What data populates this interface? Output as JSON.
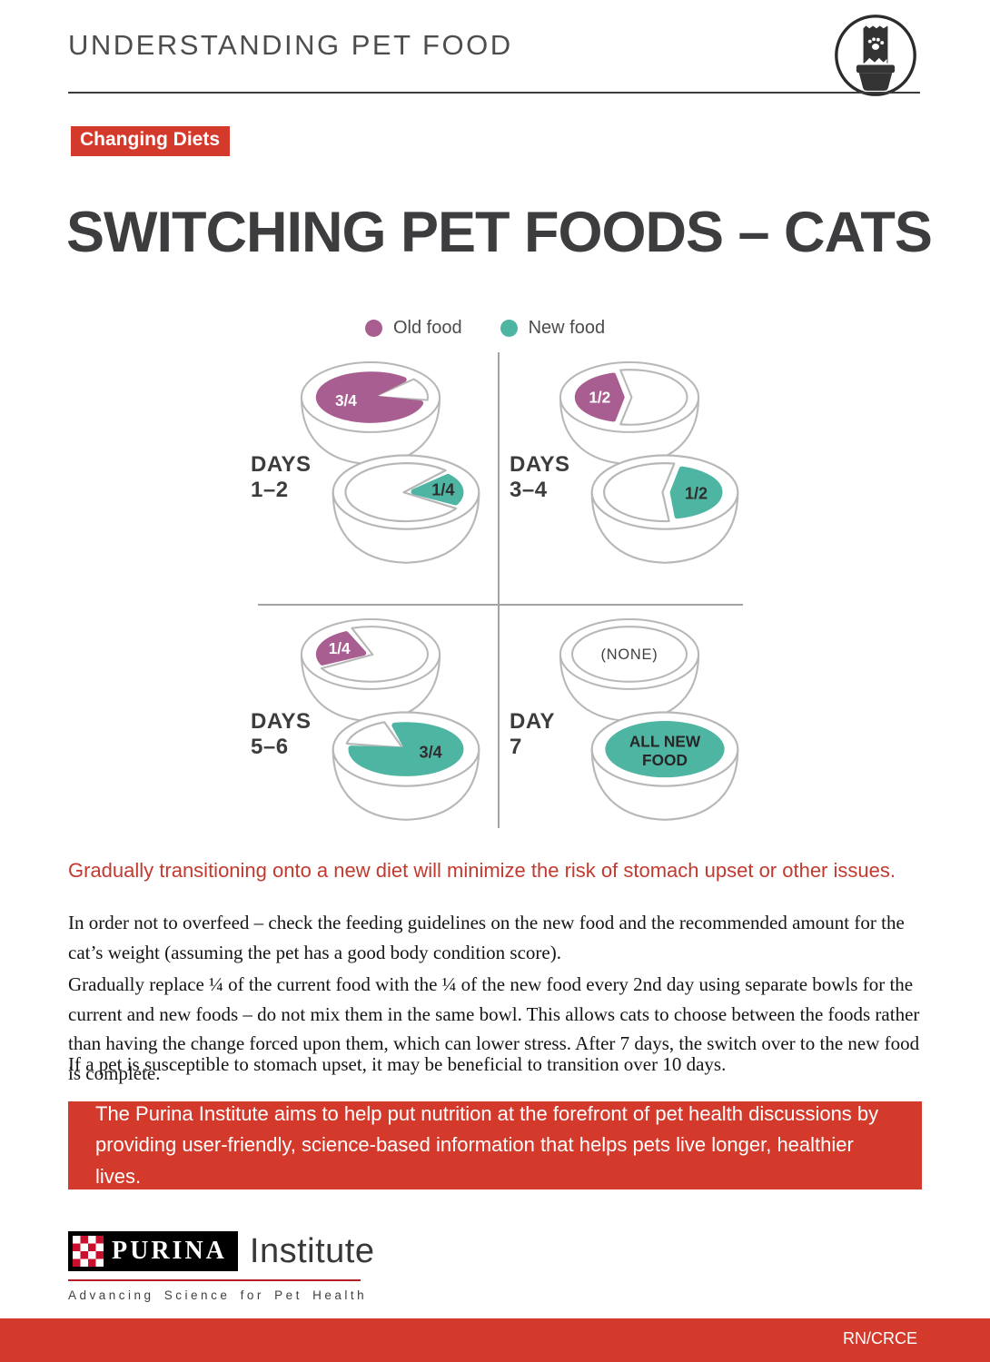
{
  "header": {
    "title": "UNDERSTANDING PET FOOD",
    "icon": "pet-food-bag-and-bowl"
  },
  "badge": {
    "label": "Changing Diets"
  },
  "title": "SWITCHING PET FOODS – CATS",
  "colors": {
    "red": "#d43a2c",
    "red_text": "#c13a2f",
    "old_food": "#a85e90",
    "new_food": "#4fb5a3"
  },
  "legend": {
    "items": [
      {
        "key": "old_food",
        "label": "Old food"
      },
      {
        "key": "new_food",
        "label": "New food"
      }
    ]
  },
  "diagram": {
    "quadrants": [
      {
        "label_line1": "DAYS",
        "label_line2": "1–2",
        "bowls": [
          {
            "shape": "three-quarter-left",
            "food": "old_food",
            "portion": "3/4",
            "portion_color": "#ffffff"
          },
          {
            "shape": "quarter-right",
            "food": "new_food",
            "portion": "1/4",
            "portion_color": "#2e2e2e"
          }
        ]
      },
      {
        "label_line1": "DAYS",
        "label_line2": "3–4",
        "bowls": [
          {
            "shape": "half-left",
            "food": "old_food",
            "portion": "1/2",
            "portion_color": "#ffffff"
          },
          {
            "shape": "half-right",
            "food": "new_food",
            "portion": "1/2",
            "portion_color": "#2e2e2e"
          }
        ]
      },
      {
        "label_line1": "DAYS",
        "label_line2": "5–6",
        "bowls": [
          {
            "shape": "quarter-left",
            "food": "old_food",
            "portion": "1/4",
            "portion_color": "#ffffff"
          },
          {
            "shape": "three-quarter-right",
            "food": "new_food",
            "portion": "3/4",
            "portion_color": "#2e2e2e"
          }
        ]
      },
      {
        "label_line1": "DAY",
        "label_line2": "7",
        "bowls": [
          {
            "shape": "none",
            "text": "(NONE)"
          },
          {
            "shape": "full",
            "food": "new_food",
            "text": "ALL NEW\nFOOD",
            "portion_color": "#262626"
          }
        ]
      }
    ]
  },
  "highlight": "Gradually transitioning onto a new diet will minimize the risk of stomach upset or other issues.",
  "paragraphs": [
    "In order not to overfeed – check the feeding guidelines on the new food and the recommended amount for the cat’s weight (assuming the pet has a good body condition score).",
    "Gradually replace ¼ of the current food with the ¼ of the new food every 2nd day using separate bowls for the current and new foods – do not mix them in the same bowl. This allows cats to choose between the foods rather than having the change forced upon them, which can lower stress. After 7 days, the switch over to the new food is complete.",
    "If a pet is susceptible to stomach upset, it may be beneficial to transition over 10 days."
  ],
  "banner": {
    "lines": [
      "The Purina Institute aims to help put nutrition at the forefront of pet health discussions by",
      "providing user-friendly, science-based information that helps pets live longer, healthier lives."
    ]
  },
  "logo": {
    "wordmark": "PURINA",
    "suffix": "Institute",
    "tagline": "Advancing Science for Pet Health"
  },
  "footer": {
    "code": "RN/CRCE"
  }
}
